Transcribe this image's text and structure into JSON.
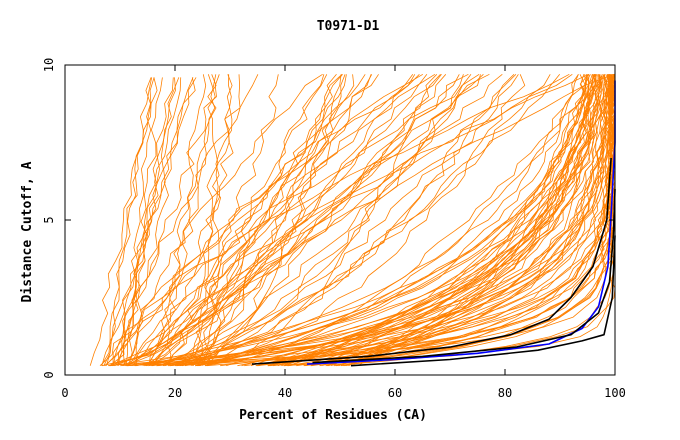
{
  "chart_data": {
    "type": "line",
    "title": "T0971-D1",
    "xlabel": "Percent of Residues (CA)",
    "ylabel": "Distance Cutoff, A",
    "xlim": [
      0,
      100
    ],
    "ylim": [
      0,
      10
    ],
    "x_ticks": [
      0,
      20,
      40,
      60,
      80,
      100
    ],
    "y_ticks": [
      0,
      5,
      10
    ],
    "grid": false,
    "legend": "none",
    "colors": {
      "background_series": "#ff8000",
      "highlight_blue": "#0000ff",
      "highlight_black": "#000000"
    },
    "highlight_series": [
      {
        "color": "#000000",
        "points": [
          [
            34,
            0.35
          ],
          [
            55,
            0.6
          ],
          [
            70,
            0.9
          ],
          [
            81,
            1.3
          ],
          [
            88,
            1.8
          ],
          [
            92,
            2.5
          ],
          [
            96,
            3.5
          ],
          [
            98.5,
            5.0
          ],
          [
            99.3,
            7.0
          ]
        ]
      },
      {
        "color": "#000000",
        "points": [
          [
            52,
            0.3
          ],
          [
            70,
            0.5
          ],
          [
            86,
            0.8
          ],
          [
            94,
            1.1
          ],
          [
            98,
            1.3
          ],
          [
            99.5,
            2.5
          ],
          [
            100,
            4.5
          ]
        ]
      },
      {
        "color": "#0000ff",
        "points": [
          [
            44,
            0.35
          ],
          [
            60,
            0.5
          ],
          [
            75,
            0.7
          ],
          [
            88,
            1.0
          ],
          [
            94,
            1.5
          ],
          [
            97,
            2.2
          ],
          [
            98.7,
            3.5
          ],
          [
            99.4,
            5.5
          ],
          [
            100,
            7.5
          ],
          [
            100,
            9.5
          ]
        ]
      },
      {
        "color": "#000000",
        "points": [
          [
            45,
            0.4
          ],
          [
            65,
            0.6
          ],
          [
            82,
            0.9
          ],
          [
            92,
            1.3
          ],
          [
            97,
            2.0
          ],
          [
            99,
            3.0
          ],
          [
            99.7,
            4.5
          ],
          [
            100,
            6.0
          ]
        ]
      }
    ]
  }
}
